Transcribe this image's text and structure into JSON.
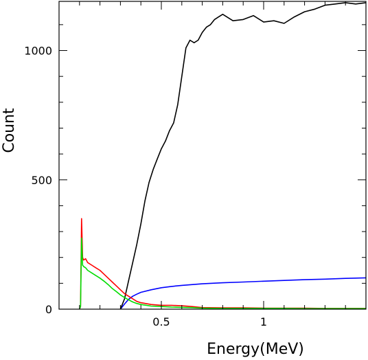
{
  "chart_data": {
    "type": "line",
    "title": "",
    "xlabel": "Energy(MeV)",
    "ylabel": "Count",
    "xlim": [
      0.0,
      1.5
    ],
    "ylim": [
      0,
      1190
    ],
    "xticks": [
      {
        "value": 0.5,
        "label": "0.5"
      },
      {
        "value": 1.0,
        "label": "1"
      }
    ],
    "yticks": [
      {
        "value": 0,
        "label": "0"
      },
      {
        "value": 500,
        "label": "500"
      },
      {
        "value": 1000,
        "label": "1000"
      }
    ],
    "x_minor_step": 0.1,
    "y_minor_step": 100,
    "grid": false,
    "legend": "none",
    "series": [
      {
        "color": "#000000",
        "x": [
          0.3,
          0.32,
          0.34,
          0.36,
          0.38,
          0.4,
          0.42,
          0.44,
          0.46,
          0.48,
          0.5,
          0.52,
          0.54,
          0.56,
          0.58,
          0.6,
          0.62,
          0.64,
          0.66,
          0.68,
          0.7,
          0.72,
          0.74,
          0.76,
          0.78,
          0.8,
          0.85,
          0.9,
          0.95,
          1.0,
          1.05,
          1.1,
          1.15,
          1.2,
          1.25,
          1.3,
          1.35,
          1.4,
          1.45,
          1.5
        ],
        "values": [
          0,
          40,
          110,
          180,
          250,
          330,
          420,
          490,
          540,
          580,
          620,
          650,
          690,
          720,
          790,
          900,
          1010,
          1040,
          1030,
          1040,
          1070,
          1090,
          1100,
          1120,
          1130,
          1140,
          1115,
          1120,
          1135,
          1110,
          1115,
          1105,
          1130,
          1150,
          1160,
          1175,
          1180,
          1185,
          1180,
          1185
        ]
      },
      {
        "color": "#0000ff",
        "x": [
          0.3,
          0.32,
          0.34,
          0.36,
          0.38,
          0.4,
          0.45,
          0.5,
          0.55,
          0.6,
          0.7,
          0.8,
          0.9,
          1.0,
          1.1,
          1.2,
          1.3,
          1.4,
          1.5
        ],
        "values": [
          0,
          20,
          38,
          50,
          58,
          65,
          75,
          83,
          88,
          92,
          98,
          102,
          105,
          108,
          111,
          114,
          116,
          119,
          121
        ]
      },
      {
        "color": "#ff0000",
        "x": [
          0.1,
          0.105,
          0.11,
          0.115,
          0.12,
          0.13,
          0.14,
          0.16,
          0.18,
          0.2,
          0.22,
          0.24,
          0.26,
          0.28,
          0.3,
          0.32,
          0.34,
          0.36,
          0.38,
          0.4,
          0.45,
          0.5,
          0.55,
          0.6,
          0.65,
          0.7,
          0.8,
          0.9,
          1.0,
          1.1,
          1.2,
          1.3,
          1.4,
          1.5
        ],
        "values": [
          0,
          10,
          350,
          200,
          190,
          195,
          180,
          170,
          160,
          150,
          135,
          120,
          105,
          90,
          75,
          60,
          50,
          40,
          30,
          25,
          18,
          15,
          15,
          13,
          10,
          6,
          5,
          5,
          4,
          4,
          4,
          3,
          3,
          3
        ]
      },
      {
        "color": "#00dd00",
        "x": [
          0.1,
          0.105,
          0.11,
          0.115,
          0.12,
          0.13,
          0.14,
          0.16,
          0.18,
          0.2,
          0.22,
          0.24,
          0.26,
          0.28,
          0.3,
          0.32,
          0.34,
          0.36,
          0.38,
          0.4,
          0.45,
          0.5,
          0.55,
          0.6,
          0.65,
          0.7,
          0.8,
          0.9,
          1.0,
          1.1,
          1.2,
          1.3,
          1.4,
          1.5
        ],
        "values": [
          0,
          10,
          275,
          170,
          165,
          160,
          150,
          140,
          130,
          120,
          108,
          95,
          80,
          68,
          55,
          45,
          36,
          28,
          22,
          18,
          12,
          10,
          8,
          7,
          6,
          4,
          3,
          3,
          3,
          3,
          2,
          2,
          2,
          2
        ]
      }
    ]
  }
}
